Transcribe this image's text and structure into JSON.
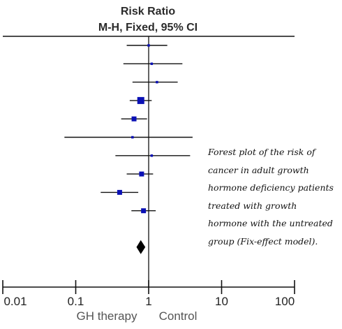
{
  "chart_data": {
    "type": "forest",
    "title": [
      "Risk Ratio",
      "M-H, Fixed, 95% CI"
    ],
    "x_scale": "log",
    "xlim": [
      0.01,
      100
    ],
    "reference_line": 1,
    "ticks": [
      {
        "value": 0.01,
        "label": "0.01"
      },
      {
        "value": 0.1,
        "label": "0.1"
      },
      {
        "value": 1,
        "label": "1"
      },
      {
        "value": 10,
        "label": "10"
      },
      {
        "value": 100,
        "label": "100"
      }
    ],
    "direction_labels": {
      "left": "GH therapy",
      "right": "Control"
    },
    "studies": [
      {
        "rr": 1.0,
        "lower": 0.5,
        "upper": 1.8,
        "weight": 1
      },
      {
        "rr": 1.1,
        "lower": 0.45,
        "upper": 2.9,
        "weight": 1
      },
      {
        "rr": 1.3,
        "lower": 0.6,
        "upper": 2.5,
        "weight": 1
      },
      {
        "rr": 0.78,
        "lower": 0.55,
        "upper": 1.1,
        "weight": 3
      },
      {
        "rr": 0.63,
        "lower": 0.42,
        "upper": 0.95,
        "weight": 2
      },
      {
        "rr": 0.6,
        "lower": 0.07,
        "upper": 4.0,
        "weight": 1
      },
      {
        "rr": 1.1,
        "lower": 0.35,
        "upper": 3.7,
        "weight": 1
      },
      {
        "rr": 0.8,
        "lower": 0.5,
        "upper": 1.15,
        "weight": 2
      },
      {
        "rr": 0.4,
        "lower": 0.22,
        "upper": 0.72,
        "weight": 2
      },
      {
        "rr": 0.85,
        "lower": 0.58,
        "upper": 1.25,
        "weight": 2
      }
    ],
    "pooled": {
      "rr": 0.78,
      "lower": 0.68,
      "upper": 0.9
    },
    "colors": {
      "marker": "#0a10b5",
      "line": "#111111",
      "diamond": "#000000"
    }
  },
  "annotation": {
    "lines": [
      "Forest plot of the risk of",
      "cancer in adult growth",
      "hormone deficiency patients",
      "treated with growth",
      "hormone with the untreated",
      "group (Fix-effect model)."
    ]
  }
}
